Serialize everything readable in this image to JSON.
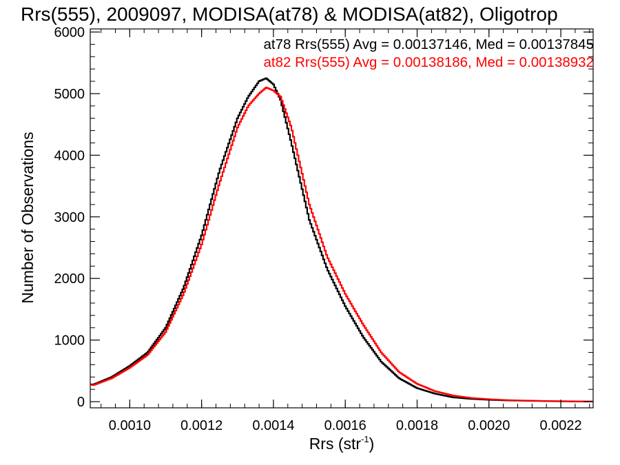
{
  "chart_data": {
    "type": "line",
    "style": "step histogram",
    "title": "Rrs(555), 2009097, MODISA(at78) & MODISA(at82), Oligotrop",
    "xlabel": "Rrs (str",
    "xlabel_sup": "-1",
    "xlabel_close": ")",
    "ylabel": "Number of Observations",
    "xlim": [
      0.00089,
      0.00229
    ],
    "ylim": [
      -100,
      6050
    ],
    "x_ticks": [
      0.001,
      0.0012,
      0.0014,
      0.0016,
      0.0018,
      0.002,
      0.0022
    ],
    "x_tick_labels": [
      "0.0010",
      "0.0012",
      "0.0014",
      "0.0016",
      "0.0018",
      "0.0020",
      "0.0022"
    ],
    "y_ticks": [
      0,
      1000,
      2000,
      3000,
      4000,
      5000,
      6000
    ],
    "y_tick_labels": [
      "0",
      "1000",
      "2000",
      "3000",
      "4000",
      "5000",
      "6000"
    ],
    "grid": false,
    "legend_position": "top-right",
    "annotations": [
      "at78 Rrs(555) Avg = 0.00137146, Med = 0.00137845",
      "at82 Rrs(555) Avg = 0.00138186, Med = 0.00138932"
    ],
    "series": [
      {
        "color": "#000000",
        "x": [
          0.0009,
          0.00095,
          0.001,
          0.00105,
          0.0011,
          0.00115,
          0.0012,
          0.00125,
          0.0013,
          0.00133,
          0.00136,
          0.00138,
          0.0014,
          0.00142,
          0.00145,
          0.0015,
          0.00155,
          0.0016,
          0.00165,
          0.0017,
          0.00175,
          0.0018,
          0.00185,
          0.0019,
          0.00195,
          0.002,
          0.00205,
          0.0021,
          0.00215,
          0.0022,
          0.00225,
          0.00229
        ],
        "values": [
          280,
          400,
          580,
          800,
          1200,
          1850,
          2700,
          3750,
          4600,
          4950,
          5200,
          5250,
          5150,
          4900,
          4200,
          2950,
          2150,
          1550,
          1050,
          650,
          380,
          220,
          130,
          70,
          45,
          30,
          20,
          15,
          10,
          5,
          3,
          2
        ]
      },
      {
        "color": "#ff0000",
        "x": [
          0.0009,
          0.00095,
          0.001,
          0.00105,
          0.0011,
          0.00115,
          0.0012,
          0.00125,
          0.0013,
          0.00133,
          0.00136,
          0.00138,
          0.0014,
          0.00142,
          0.00145,
          0.0015,
          0.00155,
          0.0016,
          0.00165,
          0.0017,
          0.00175,
          0.0018,
          0.00185,
          0.0019,
          0.00195,
          0.002,
          0.00205,
          0.0021,
          0.00215,
          0.0022,
          0.00225,
          0.00229
        ],
        "values": [
          270,
          380,
          550,
          760,
          1130,
          1750,
          2550,
          3550,
          4450,
          4800,
          5000,
          5100,
          5050,
          4950,
          4450,
          3200,
          2350,
          1750,
          1250,
          800,
          480,
          290,
          170,
          100,
          60,
          40,
          25,
          18,
          12,
          8,
          5,
          3
        ]
      }
    ]
  }
}
